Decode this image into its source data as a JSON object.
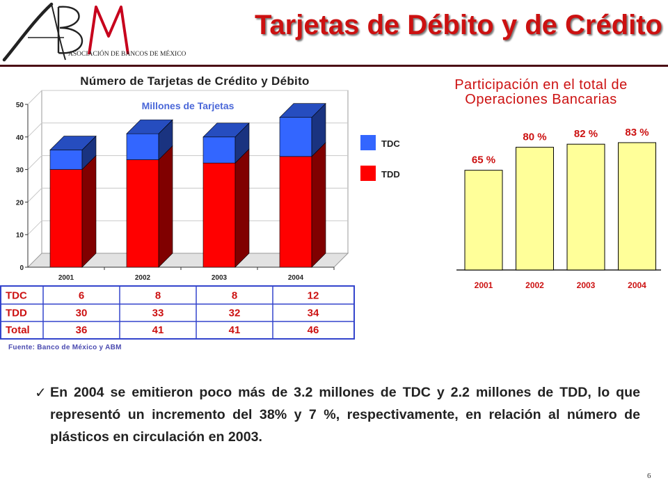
{
  "logo": {
    "letters": "ABM",
    "caption": "ASOCIACIÓN DE BANCOS DE MÉXICO"
  },
  "title": "Tarjetas de Débito y de Crédito",
  "chart1": {
    "title": "Número de Tarjetas de Crédito y Débito",
    "subtitle": "Millones de Tarjetas"
  },
  "chart2": {
    "title_line1": "Participación en el total de",
    "title_line2": "Operaciones Bancarias"
  },
  "chart_data": [
    {
      "type": "bar",
      "stacked": true,
      "title": "Número de Tarjetas de Crédito y Débito",
      "subtitle": "Millones de Tarjetas",
      "categories": [
        "2001",
        "2002",
        "2003",
        "2004"
      ],
      "series": [
        {
          "name": "TDD",
          "values": [
            30,
            33,
            32,
            34
          ],
          "color": "#ff0000"
        },
        {
          "name": "TDC",
          "values": [
            6,
            8,
            8,
            12
          ],
          "color": "#3366ff"
        }
      ],
      "ylim": [
        0,
        50
      ],
      "yticks": [
        "0",
        "10",
        "20",
        "30",
        "40",
        "50"
      ],
      "grid": true,
      "legend": "right",
      "legend_items": [
        "TDC",
        "TDD"
      ]
    },
    {
      "type": "bar",
      "title": "Participación en el total de Operaciones Bancarias",
      "categories": [
        "2001",
        "2002",
        "2003",
        "2004"
      ],
      "values": [
        65,
        80,
        82,
        83
      ],
      "labels": [
        "65 %",
        "80 %",
        "82 %",
        "83 %"
      ],
      "color": "#ffff99",
      "grid": false
    }
  ],
  "table": {
    "headers": [
      "",
      "2001",
      "2002",
      "2003",
      "2004"
    ],
    "rows": [
      {
        "label": "TDC",
        "values": [
          "6",
          "8",
          "8",
          "12"
        ]
      },
      {
        "label": "TDD",
        "values": [
          "30",
          "33",
          "32",
          "34"
        ]
      },
      {
        "label": "Total",
        "values": [
          "36",
          "41",
          "41",
          "46"
        ]
      }
    ]
  },
  "source": "Fuente: Banco de México y ABM",
  "bullet": "En 2004 se emitieron poco más de 3.2 millones de TDC y 2.2 millones de TDD, lo que representó un incremento del 38% y 7 %, respectivamente, en relación al número de plásticos en circulación en 2003.",
  "page_number": "6"
}
